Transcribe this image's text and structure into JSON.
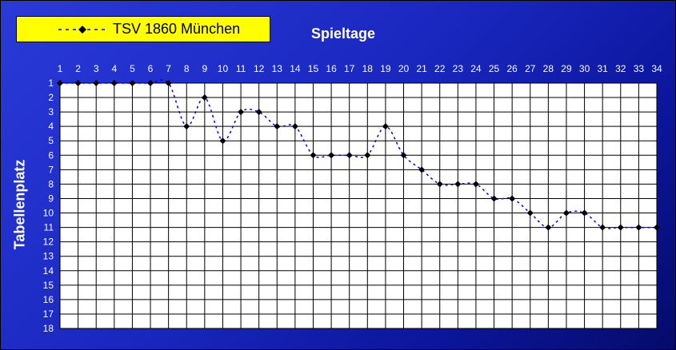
{
  "chart_data": {
    "type": "line",
    "title": "Spieltage",
    "ylabel": "Tabellenplatz",
    "xlabel": "",
    "x": [
      1,
      2,
      3,
      4,
      5,
      6,
      7,
      8,
      9,
      10,
      11,
      12,
      13,
      14,
      15,
      16,
      17,
      18,
      19,
      20,
      21,
      22,
      23,
      24,
      25,
      26,
      27,
      28,
      29,
      30,
      31,
      32,
      33,
      34
    ],
    "x_ticks": [
      "1",
      "2",
      "3",
      "4",
      "5",
      "6",
      "7",
      "8",
      "9",
      "10",
      "11",
      "12",
      "13",
      "14",
      "15",
      "16",
      "17",
      "18",
      "19",
      "20",
      "21",
      "22",
      "23",
      "24",
      "25",
      "26",
      "27",
      "28",
      "29",
      "30",
      "31",
      "32",
      "33",
      "34"
    ],
    "y_ticks": [
      "1",
      "2",
      "3",
      "4",
      "5",
      "6",
      "7",
      "8",
      "9",
      "10",
      "11",
      "12",
      "13",
      "14",
      "15",
      "16",
      "17",
      "18"
    ],
    "xlim": [
      1,
      34
    ],
    "ylim": [
      1,
      18
    ],
    "y_inverted": true,
    "x_axis_position": "top",
    "grid": true,
    "legend_position": "top-left",
    "series": [
      {
        "name": "TSV 1860 München",
        "values": [
          1,
          1,
          1,
          1,
          1,
          1,
          1,
          4,
          2,
          5,
          3,
          3,
          4,
          4,
          6,
          6,
          6,
          6,
          4,
          6,
          7,
          8,
          8,
          8,
          9,
          9,
          10,
          11,
          10,
          10,
          11,
          11,
          11,
          11
        ],
        "line_color": "#0000ff",
        "line_style": "dashed",
        "marker": "diamond",
        "marker_color": "#000000"
      }
    ],
    "colors": {
      "plot_background": "#ffffff",
      "grid": "#000000",
      "legend_background": "#ffff00",
      "text": "#ffffff"
    }
  }
}
